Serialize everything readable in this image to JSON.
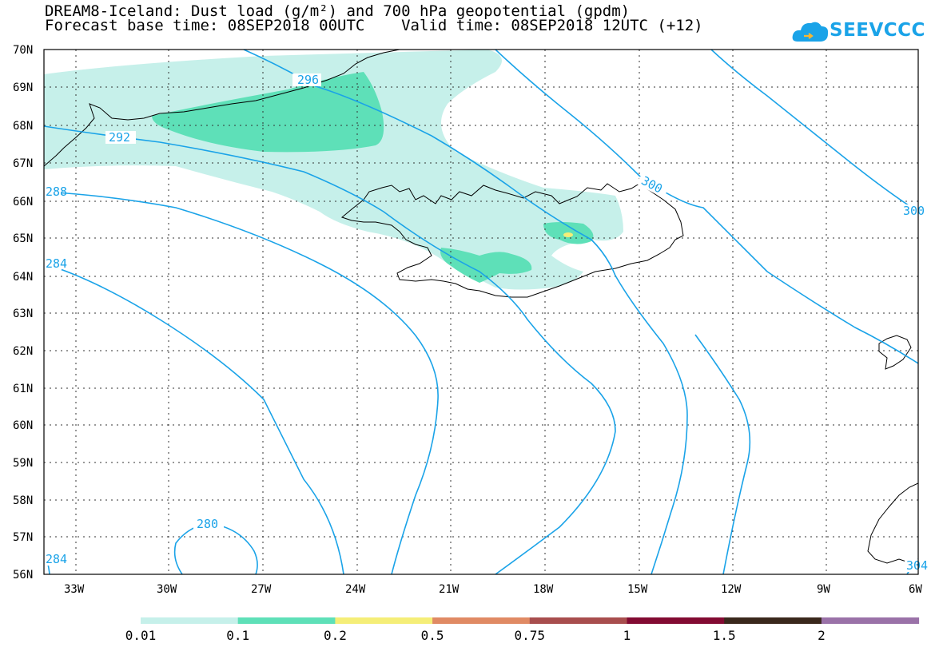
{
  "header": {
    "title_line1": "DREAM8-Iceland: Dust load (g/m²) and 700 hPa geopotential (gpdm)",
    "title_line2": "Forecast base time: 08SEP2018 00UTC    Valid time: 08SEP2018 12UTC (+12)"
  },
  "logo": {
    "text": "SEEVCCC",
    "icon": "cloud-icon",
    "color": "#1aa3e8"
  },
  "map": {
    "lat_labels": [
      "70N",
      "69N",
      "68N",
      "67N",
      "66N",
      "65N",
      "64N",
      "63N",
      "62N",
      "61N",
      "60N",
      "59N",
      "58N",
      "57N",
      "56N"
    ],
    "lon_labels": [
      "33W",
      "30W",
      "27W",
      "24W",
      "21W",
      "18W",
      "15W",
      "12W",
      "9W",
      "6W"
    ],
    "contour_labels": [
      "296",
      "292",
      "288",
      "284",
      "280",
      "284",
      "300",
      "300",
      "304"
    ],
    "contour_color": "#1aa3e8"
  },
  "legend": {
    "labels": [
      "0.01",
      "0.1",
      "0.2",
      "0.5",
      "0.75",
      "1",
      "1.5",
      "2"
    ],
    "colors": [
      "#c6f0ea",
      "#5ee0b8",
      "#f5ee78",
      "#e08a64",
      "#a84e4e",
      "#820a32",
      "#3a281c",
      "#9a72a8"
    ]
  }
}
